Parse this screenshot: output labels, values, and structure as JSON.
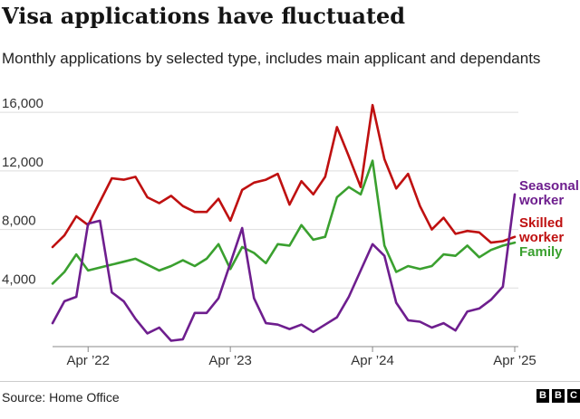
{
  "chart_data": {
    "type": "line",
    "title": "Visa applications have fluctuated",
    "subtitle": "Monthly applications by selected type, includes main applicant and dependants",
    "source": "Source: Home Office",
    "brand": [
      "B",
      "B",
      "C"
    ],
    "ylim": [
      0,
      17000
    ],
    "yticks": [
      4000,
      8000,
      12000,
      16000
    ],
    "ytick_labels": [
      "4,000",
      "8,000",
      "12,000",
      "16,000"
    ],
    "xlabel": "",
    "ylabel": "",
    "grid": true,
    "x": [
      "Jan 2022",
      "Feb 2022",
      "Mar 2022",
      "Apr 2022",
      "May 2022",
      "Jun 2022",
      "Jul 2022",
      "Aug 2022",
      "Sep 2022",
      "Oct 2022",
      "Nov 2022",
      "Dec 2022",
      "Jan 2023",
      "Feb 2023",
      "Mar 2023",
      "Apr 2023",
      "May 2023",
      "Jun 2023",
      "Jul 2023",
      "Aug 2023",
      "Sep 2023",
      "Oct 2023",
      "Nov 2023",
      "Dec 2023",
      "Jan 2024",
      "Feb 2024",
      "Mar 2024",
      "Apr 2024",
      "May 2024",
      "Jun 2024",
      "Jul 2024",
      "Aug 2024",
      "Sep 2024",
      "Oct 2024",
      "Nov 2024",
      "Dec 2024",
      "Jan 2025",
      "Feb 2025",
      "Mar 2025",
      "Apr 2025"
    ],
    "xticks": [
      "Apr 2022",
      "Apr 2023",
      "Apr 2024",
      "Apr 2025"
    ],
    "xtick_labels": [
      "Apr ’22",
      "Apr ’23",
      "Apr ’24",
      "Apr ’25"
    ],
    "series": [
      {
        "name": "Seasonal worker",
        "label_lines": [
          "Seasonal",
          "worker"
        ],
        "color": "#6e1e8e",
        "values": [
          1600,
          3100,
          3400,
          8400,
          8600,
          3700,
          3100,
          1900,
          900,
          1300,
          400,
          500,
          2300,
          2300,
          3300,
          5700,
          8100,
          3300,
          1600,
          1500,
          1200,
          1500,
          1000,
          1500,
          2000,
          3400,
          5200,
          7000,
          6200,
          3000,
          1800,
          1700,
          1300,
          1600,
          1100,
          2400,
          2600,
          3200,
          4100,
          10400
        ]
      },
      {
        "name": "Skilled worker",
        "label_lines": [
          "Skilled",
          "worker"
        ],
        "color": "#bf1010",
        "values": [
          6800,
          7600,
          8900,
          8300,
          9900,
          11500,
          11400,
          11600,
          10200,
          9800,
          10300,
          9600,
          9200,
          9200,
          10100,
          8600,
          10700,
          11200,
          11400,
          11800,
          9700,
          11300,
          10400,
          11600,
          15000,
          13000,
          10900,
          16500,
          12800,
          10800,
          11800,
          9600,
          8000,
          8800,
          7700,
          7900,
          7800,
          7100,
          7200,
          7500
        ]
      },
      {
        "name": "Family",
        "label_lines": [
          "Family"
        ],
        "color": "#3aa02f",
        "values": [
          4300,
          5100,
          6300,
          5200,
          5400,
          5600,
          5800,
          6000,
          5600,
          5200,
          5500,
          5900,
          5500,
          6000,
          7000,
          5300,
          6800,
          6400,
          5700,
          7000,
          6900,
          8300,
          7300,
          7500,
          10200,
          10900,
          10400,
          12700,
          6900,
          5100,
          5500,
          5300,
          5500,
          6300,
          6200,
          6900,
          6100,
          6600,
          6900,
          7100
        ]
      }
    ]
  }
}
